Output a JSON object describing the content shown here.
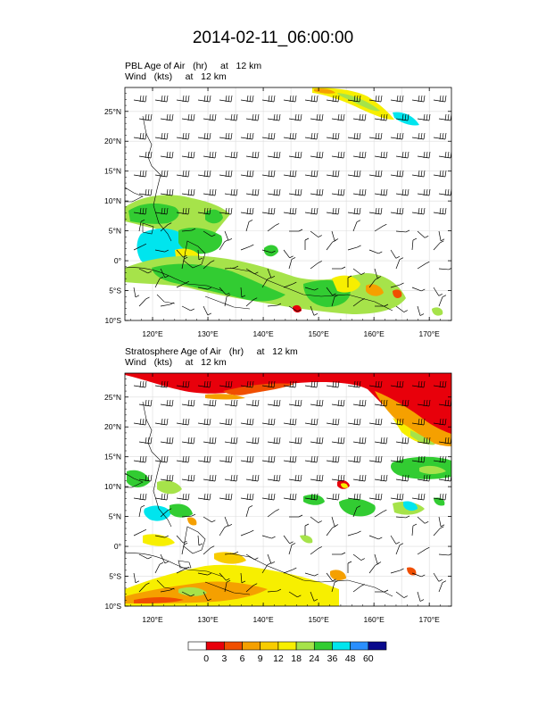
{
  "title": "2014-02-11_06:00:00",
  "panels": [
    {
      "name": "pbl",
      "title_line1": "PBL Age of Air   (hr)     at   12 km",
      "title_line2": "Wind   (kts)     at   12 km",
      "lat_labels": [
        "25°N",
        "20°N",
        "15°N",
        "10°N",
        "5°N",
        "0°",
        "5°S",
        "10°S"
      ],
      "lon_labels": [
        "120°E",
        "130°E",
        "140°E",
        "150°E",
        "160°E",
        "170°E"
      ]
    },
    {
      "name": "stratosphere",
      "title_line1": "Stratosphere Age of Air   (hr)     at   12 km",
      "title_line2": "Wind   (kts)     at   12 km",
      "lat_labels": [
        "25°N",
        "20°N",
        "15°N",
        "10°N",
        "5°N",
        "0°",
        "5°S",
        "10°S"
      ],
      "lon_labels": [
        "120°E",
        "130°E",
        "140°E",
        "150°E",
        "160°E",
        "170°E"
      ]
    }
  ],
  "colorbar": {
    "labels": [
      "0",
      "3",
      "6",
      "9",
      "12",
      "18",
      "24",
      "36",
      "48",
      "60"
    ],
    "colors": [
      "#ffffff",
      "#e8000b",
      "#f04e00",
      "#f5a000",
      "#f8cc00",
      "#f7ef00",
      "#a6e34a",
      "#32cc32",
      "#00e5ee",
      "#2a8fff",
      "#0a0a8c"
    ]
  },
  "chart_data": {
    "type": "heatmap",
    "lat_range": [
      -10,
      29
    ],
    "lon_range": [
      115,
      174
    ],
    "lat_ticks": [
      25,
      20,
      15,
      10,
      5,
      0,
      -5,
      -10
    ],
    "lon_ticks": [
      120,
      130,
      140,
      150,
      160,
      170
    ],
    "levels": [
      0,
      3,
      6,
      9,
      12,
      18,
      24,
      36,
      48,
      60
    ],
    "grid": true
  }
}
